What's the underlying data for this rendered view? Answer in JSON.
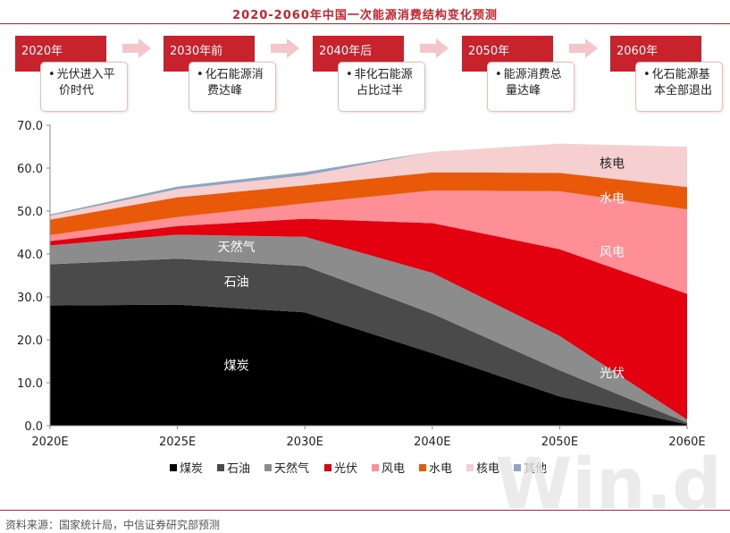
{
  "title": "2020-2060年中国一次能源消费结构变化预测",
  "stages": [
    {
      "year": "2020年",
      "text_l1": "光伏进入平",
      "text_l2": "价时代"
    },
    {
      "year": "2030年前",
      "text_l1": "化石能源消",
      "text_l2": "费达峰"
    },
    {
      "year": "2040年后",
      "text_l1": "非化石能源",
      "text_l2": "占比过半"
    },
    {
      "year": "2050年",
      "text_l1": "能源消费总",
      "text_l2": "量达峰"
    },
    {
      "year": "2060年",
      "text_l1": "化石能源基",
      "text_l2": "本全部退出"
    }
  ],
  "bullet": "•",
  "footer": "资料来源：国家统计局，中信证券研究部预测",
  "watermark": "Win.d",
  "colors": {
    "煤炭": "#000000",
    "石油": "#4a4a4a",
    "天然气": "#8c8c8c",
    "光伏": "#e3000f",
    "风电": "#ff8f96",
    "水电": "#e85a0a",
    "核电": "#f6cfd1",
    "其他": "#8ea6c0"
  },
  "chart_data": {
    "type": "area",
    "stacked": true,
    "categories": [
      "2020E",
      "2025E",
      "2030E",
      "2040E",
      "2050E",
      "2060E"
    ],
    "ylim": [
      0,
      70
    ],
    "yticks": [
      "0.0",
      "10.0",
      "20.0",
      "30.0",
      "40.0",
      "50.0",
      "60.0",
      "70.0"
    ],
    "series": [
      {
        "name": "煤炭",
        "values": [
          28.0,
          28.2,
          26.4,
          16.9,
          6.8,
          0.3
        ]
      },
      {
        "name": "石油",
        "values": [
          9.6,
          10.7,
          10.8,
          9.2,
          6.1,
          0.4
        ]
      },
      {
        "name": "天然气",
        "values": [
          4.4,
          5.6,
          6.8,
          9.5,
          8.0,
          0.7
        ]
      },
      {
        "name": "光伏",
        "values": [
          1.0,
          2.0,
          4.2,
          11.6,
          20.2,
          29.3
        ]
      },
      {
        "name": "风电",
        "values": [
          1.4,
          2.1,
          3.6,
          7.6,
          13.5,
          19.7
        ]
      },
      {
        "name": "水电",
        "values": [
          3.6,
          4.6,
          4.2,
          4.2,
          4.3,
          5.2
        ]
      },
      {
        "name": "核电",
        "values": [
          0.9,
          1.9,
          2.3,
          4.8,
          6.8,
          9.4
        ]
      },
      {
        "name": "其他",
        "values": [
          0.3,
          0.6,
          0.8,
          0.0,
          0.0,
          0.0
        ]
      }
    ],
    "area_labels": [
      {
        "series": "煤炭",
        "text": "煤炭"
      },
      {
        "series": "石油",
        "text": "石油"
      },
      {
        "series": "天然气",
        "text": "天然气"
      },
      {
        "series": "光伏",
        "text": "光伏"
      },
      {
        "series": "风电",
        "text": "风电"
      },
      {
        "series": "水电",
        "text": "水电"
      },
      {
        "series": "核电",
        "text": "核电"
      }
    ],
    "legend": [
      "煤炭",
      "石油",
      "天然气",
      "光伏",
      "风电",
      "水电",
      "核电",
      "其他"
    ],
    "legend_position": "bottom",
    "grid": false
  }
}
